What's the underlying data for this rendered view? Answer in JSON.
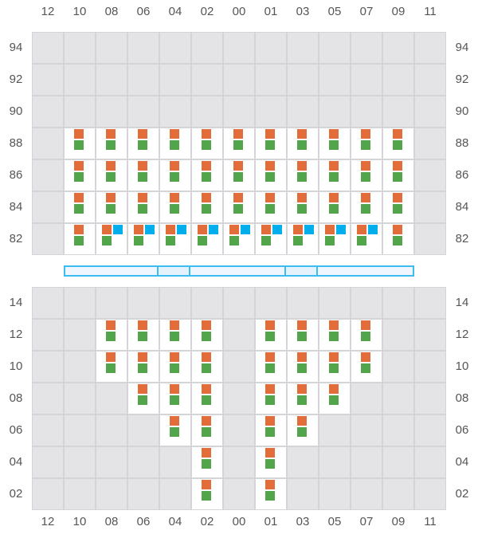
{
  "columns": [
    "12",
    "10",
    "08",
    "06",
    "04",
    "02",
    "00",
    "01",
    "03",
    "05",
    "07",
    "09",
    "11"
  ],
  "colors": {
    "orange": "#e36d3a",
    "green": "#53a54b",
    "blue": "#00aeeb",
    "grid": "#d4d4d8",
    "empty": "#e4e4e7",
    "bar": "#3dbcf2"
  },
  "top": {
    "rows": [
      {
        "label": "94",
        "cells": [
          "",
          "",
          "",
          "",
          "",
          "",
          "",
          "",
          "",
          "",
          "",
          "",
          ""
        ]
      },
      {
        "label": "92",
        "cells": [
          "",
          "",
          "",
          "",
          "",
          "",
          "",
          "",
          "",
          "",
          "",
          "",
          ""
        ]
      },
      {
        "label": "90",
        "cells": [
          "",
          "",
          "",
          "",
          "",
          "",
          "",
          "",
          "",
          "",
          "",
          "",
          ""
        ]
      },
      {
        "label": "88",
        "cells": [
          "x",
          "og",
          "og",
          "og",
          "og",
          "og",
          "og",
          "og",
          "og",
          "og",
          "og",
          "og",
          "x"
        ]
      },
      {
        "label": "86",
        "cells": [
          "x",
          "og",
          "og",
          "og",
          "og",
          "og",
          "og",
          "og",
          "og",
          "og",
          "og",
          "og",
          "x"
        ]
      },
      {
        "label": "84",
        "cells": [
          "x",
          "og",
          "og",
          "og",
          "og",
          "og",
          "og",
          "og",
          "og",
          "og",
          "og",
          "og",
          "x"
        ]
      },
      {
        "label": "82",
        "cells": [
          "x",
          "og",
          "ogb",
          "ogb",
          "ogb",
          "ogb",
          "ogb",
          "ogb",
          "ogb",
          "ogb",
          "ogb",
          "og",
          "x"
        ]
      }
    ]
  },
  "bar": {
    "segments": [
      {
        "span": 3,
        "alt": false
      },
      {
        "span": 1,
        "alt": true
      },
      {
        "span": 3,
        "alt": false
      },
      {
        "span": 1,
        "alt": true
      },
      {
        "span": 3,
        "alt": false
      }
    ]
  },
  "bottom": {
    "rows": [
      {
        "label": "14",
        "cells": [
          "",
          "",
          "",
          "",
          "",
          "",
          "",
          "",
          "",
          "",
          "",
          "",
          ""
        ]
      },
      {
        "label": "12",
        "cells": [
          "",
          "",
          "og",
          "og",
          "og",
          "og",
          "",
          "og",
          "og",
          "og",
          "og",
          "",
          ""
        ]
      },
      {
        "label": "10",
        "cells": [
          "",
          "",
          "og",
          "og",
          "og",
          "og",
          "",
          "og",
          "og",
          "og",
          "og",
          "",
          ""
        ]
      },
      {
        "label": "08",
        "cells": [
          "",
          "",
          "",
          "og",
          "og",
          "og",
          "",
          "og",
          "og",
          "og",
          "",
          "",
          ""
        ]
      },
      {
        "label": "06",
        "cells": [
          "",
          "",
          "",
          "",
          "og",
          "og",
          "",
          "og",
          "og",
          "",
          "",
          "",
          ""
        ]
      },
      {
        "label": "04",
        "cells": [
          "",
          "",
          "",
          "",
          "",
          "og",
          "",
          "og",
          "",
          "",
          "",
          "",
          ""
        ]
      },
      {
        "label": "02",
        "cells": [
          "",
          "",
          "",
          "",
          "",
          "og",
          "",
          "og",
          "",
          "",
          "",
          "",
          ""
        ]
      }
    ]
  }
}
